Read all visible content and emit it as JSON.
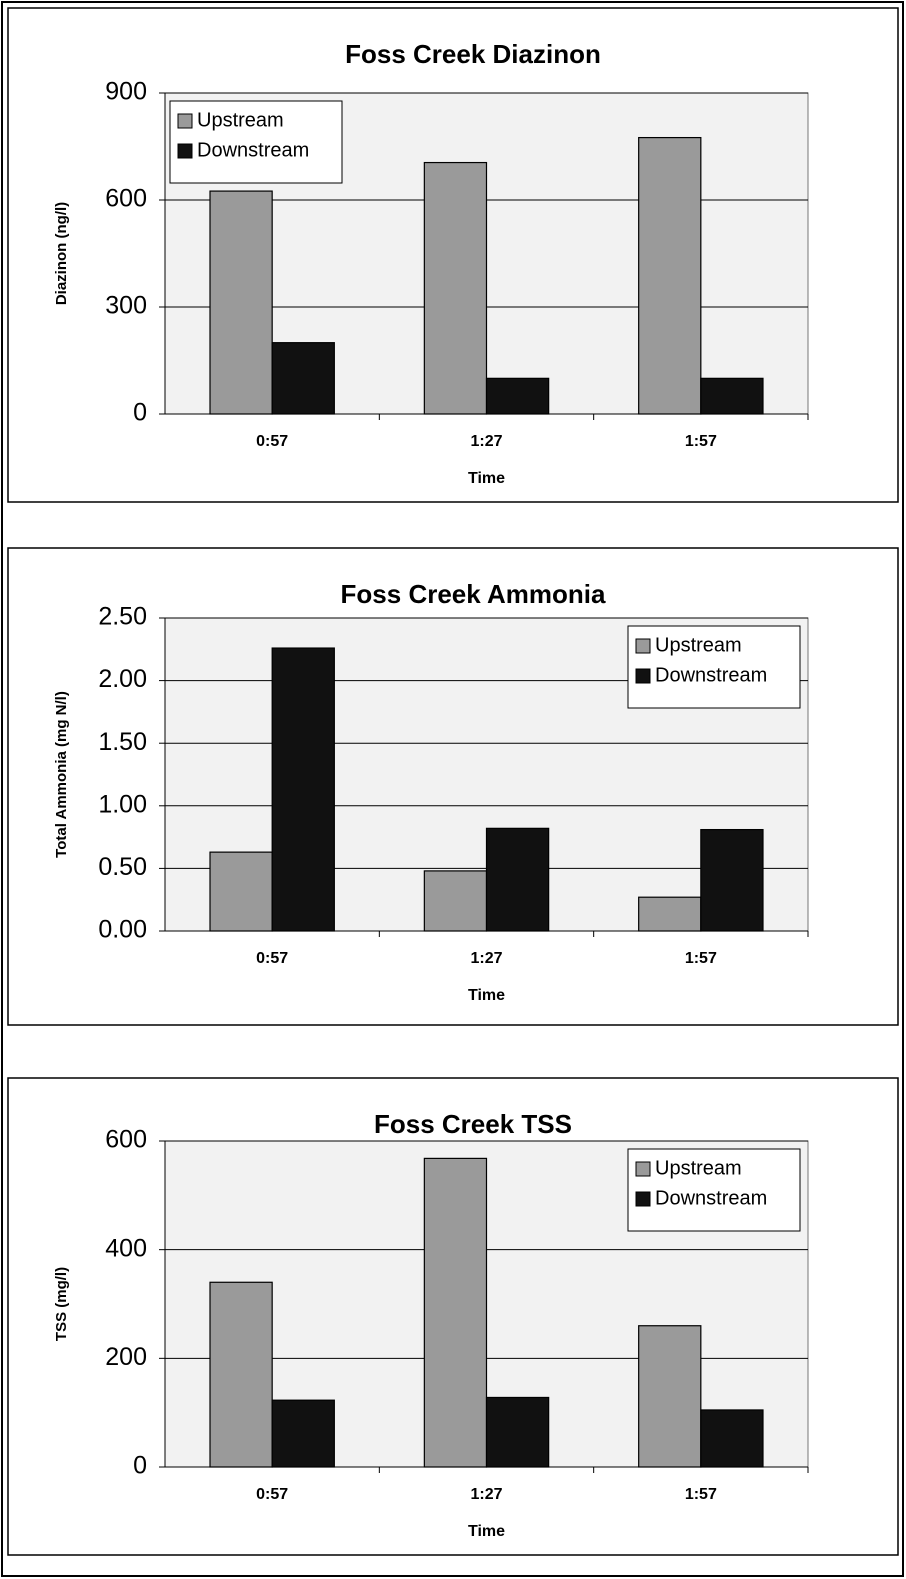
{
  "chart_data": [
    {
      "type": "bar",
      "title": "Foss Creek Diazinon",
      "xlabel": "Time",
      "ylabel": "Diazinon (ng/l)",
      "categories": [
        "0:57",
        "1:27",
        "1:57"
      ],
      "series": [
        {
          "name": "Upstream",
          "color": "#9a9a9a",
          "values": [
            625,
            705,
            775
          ]
        },
        {
          "name": "Downstream",
          "color": "#111111",
          "values": [
            200,
            100,
            100
          ]
        }
      ],
      "ylim": [
        0,
        900
      ],
      "yticks": [
        0,
        300,
        600,
        900
      ],
      "grid": true,
      "legend": "upper left"
    },
    {
      "type": "bar",
      "title": "Foss Creek Ammonia",
      "xlabel": "Time",
      "ylabel": "Total Ammonia (mg N/l)",
      "categories": [
        "0:57",
        "1:27",
        "1:57"
      ],
      "series": [
        {
          "name": "Upstream",
          "color": "#9a9a9a",
          "values": [
            0.63,
            0.48,
            0.27
          ]
        },
        {
          "name": "Downstream",
          "color": "#111111",
          "values": [
            2.26,
            0.82,
            0.81
          ]
        }
      ],
      "ylim": [
        0,
        2.5
      ],
      "yticks": [
        {
          "value": 0,
          "label": "0.00"
        },
        {
          "value": 0.5,
          "label": "0.50"
        },
        {
          "value": 1,
          "label": "1.00"
        },
        {
          "value": 1.5,
          "label": "1.50"
        },
        {
          "value": 2,
          "label": "2.00"
        },
        {
          "value": 2.5,
          "label": "2.50"
        }
      ],
      "grid": true,
      "legend": "upper right"
    },
    {
      "type": "bar",
      "title": "Foss Creek TSS",
      "xlabel": "Time",
      "ylabel": "TSS (mg/l)",
      "categories": [
        "0:57",
        "1:27",
        "1:57"
      ],
      "series": [
        {
          "name": "Upstream",
          "color": "#9a9a9a",
          "values": [
            340,
            568,
            260
          ]
        },
        {
          "name": "Downstream",
          "color": "#111111",
          "values": [
            123,
            128,
            105
          ]
        }
      ],
      "ylim": [
        0,
        600
      ],
      "yticks": [
        0,
        200,
        400,
        600
      ],
      "grid": true,
      "legend": "upper right"
    }
  ]
}
